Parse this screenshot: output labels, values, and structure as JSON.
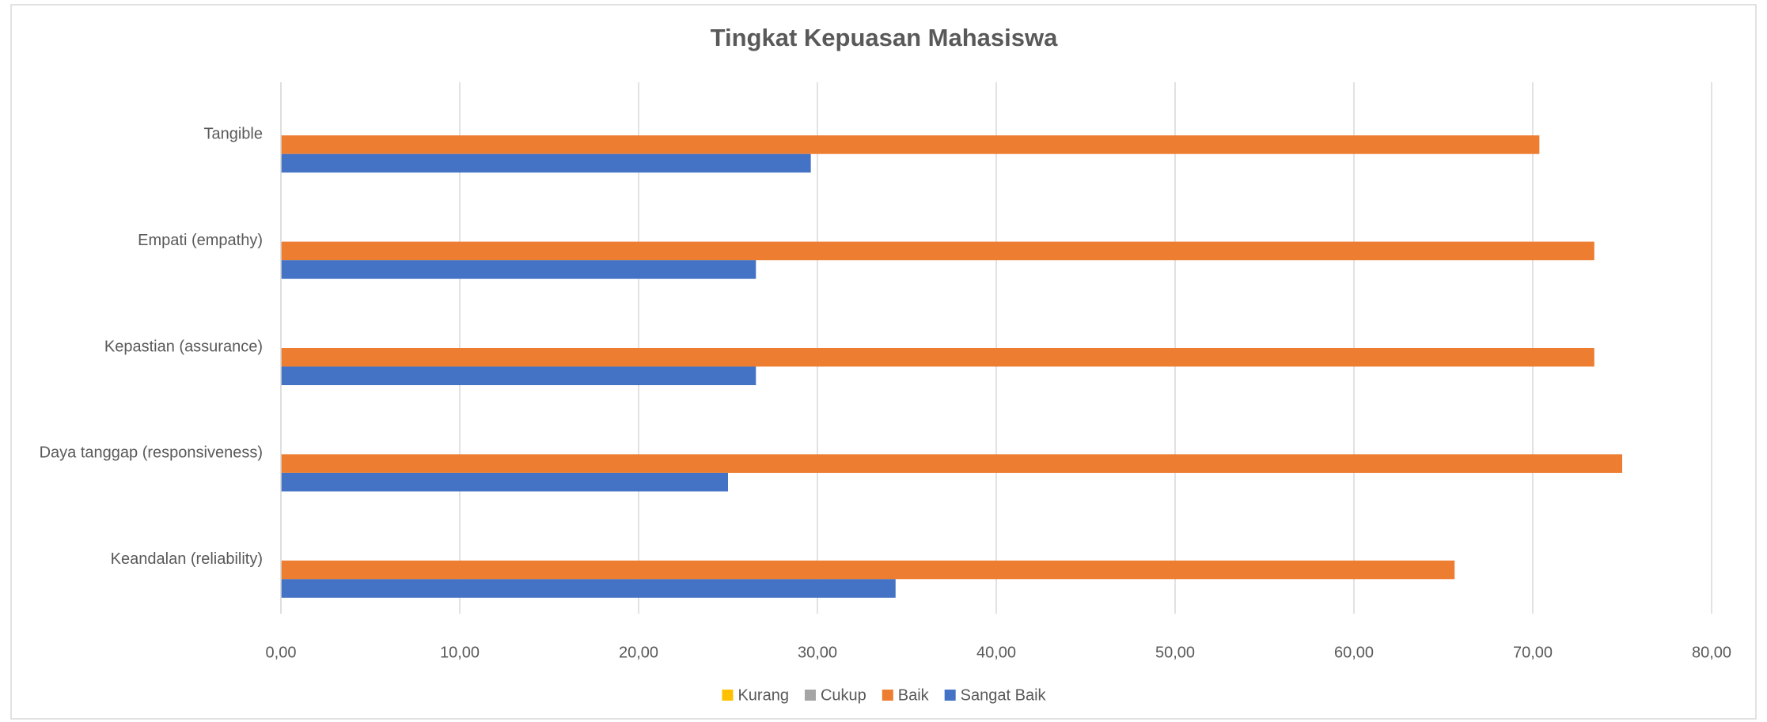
{
  "chart_data": {
    "type": "bar",
    "orientation": "horizontal",
    "title": "Tingkat Kepuasan Mahasiswa",
    "categories": [
      "Tangible",
      "Empati (empathy)",
      "Kepastian (assurance)",
      "Daya tanggap (responsiveness)",
      "Keandalan (reliability)"
    ],
    "series": [
      {
        "name": "Kurang",
        "color": "#ffc000",
        "values": [
          0,
          0,
          0,
          0,
          0
        ]
      },
      {
        "name": "Cukup",
        "color": "#a5a5a5",
        "values": [
          0,
          0,
          0,
          0,
          0
        ]
      },
      {
        "name": "Baik",
        "color": "#ed7d31",
        "values": [
          70.37,
          73.44,
          73.44,
          75,
          65.63
        ]
      },
      {
        "name": "Sangat Baik",
        "color": "#4472c4",
        "values": [
          29.63,
          26.56,
          26.56,
          25,
          34.37
        ]
      }
    ],
    "xlim": [
      0,
      80
    ],
    "xticks": [
      {
        "value": 0,
        "label": "0,00"
      },
      {
        "value": 10,
        "label": "10,00"
      },
      {
        "value": 20,
        "label": "20,00"
      },
      {
        "value": 30,
        "label": "30,00"
      },
      {
        "value": 40,
        "label": "40,00"
      },
      {
        "value": 50,
        "label": "50,00"
      },
      {
        "value": 60,
        "label": "60,00"
      },
      {
        "value": 70,
        "label": "70,00"
      },
      {
        "value": 80,
        "label": "80,00"
      }
    ],
    "grid": true,
    "legend": "bottom"
  }
}
